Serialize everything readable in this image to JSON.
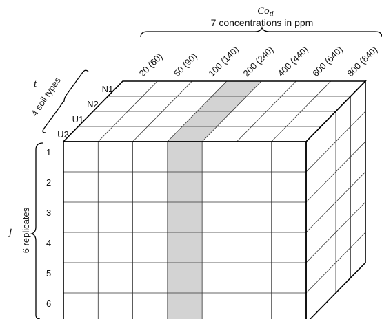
{
  "header": {
    "symbol": "Co",
    "symbol_sub": "ti",
    "caption": "7 concentrations in ppm"
  },
  "concentrations": [
    "20 (60)",
    "50 (90)",
    "100 (140)",
    "200 (240)",
    "400 (440)",
    "600 (640)",
    "800 (840)"
  ],
  "soil": {
    "symbol": "t",
    "caption": "4 soil types",
    "types": [
      "N1",
      "N2",
      "U1",
      "U2"
    ]
  },
  "replicates": {
    "symbol": "j",
    "caption": "6 replicates",
    "labels": [
      "1",
      "2",
      "3",
      "4",
      "5",
      "6"
    ]
  },
  "highlight": {
    "concentration_index": 3,
    "color": "#d3d3d3"
  },
  "colors": {
    "line": "#000000",
    "grid": "#333333",
    "fill": "#ffffff"
  }
}
